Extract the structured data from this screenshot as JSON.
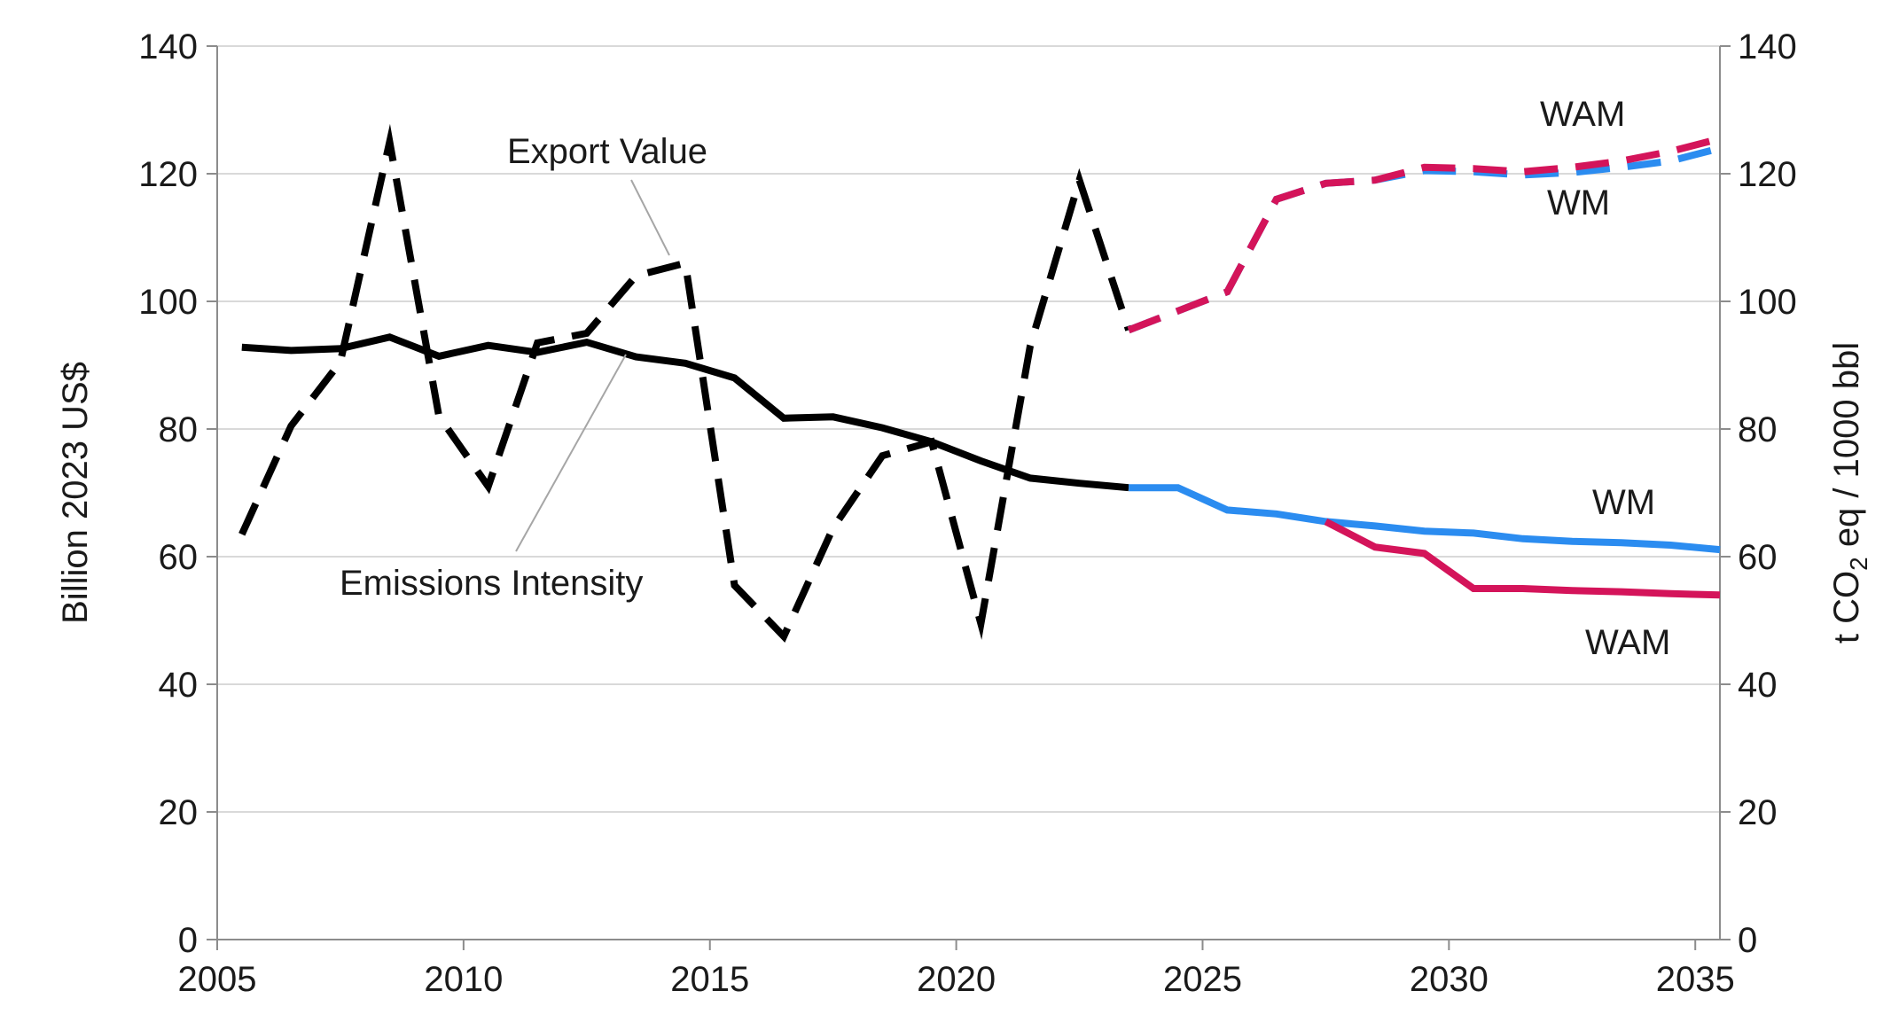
{
  "chart_data": {
    "type": "line",
    "title": "",
    "x_ticks": [
      "2005",
      "2010",
      "2015",
      "2020",
      "2025",
      "2030",
      "2035"
    ],
    "xlim": [
      2005,
      2035.5
    ],
    "left_axis": {
      "label": "Billion 2023 US$",
      "ylim": [
        0,
        140
      ],
      "ticks": [
        "0",
        "20",
        "40",
        "60",
        "80",
        "100",
        "120",
        "140"
      ]
    },
    "right_axis": {
      "label_prefix": "t CO",
      "label_sub": "2",
      "label_suffix": " eq / 1000 bbl",
      "ylim": [
        0,
        140
      ],
      "ticks": [
        "0",
        "20",
        "40",
        "60",
        "80",
        "100",
        "120",
        "140"
      ]
    },
    "grid": true,
    "series": [
      {
        "name": "Export Value (historical)",
        "axis": "left",
        "style": "dashed",
        "color": "#000000",
        "x": [
          2005.5,
          2006.5,
          2007.5,
          2008.5,
          2009.5,
          2010.5,
          2011.5,
          2012.5,
          2013.5,
          2014.5,
          2015.5,
          2016.5,
          2017.5,
          2018.5,
          2019.5,
          2020.5,
          2021.5,
          2022.5,
          2023.5
        ],
        "values": [
          63.5,
          80.5,
          90.5,
          125,
          82,
          71,
          93.5,
          95,
          104,
          106,
          55.5,
          47.5,
          64.5,
          75.8,
          78,
          49.5,
          93,
          119,
          95.5
        ]
      },
      {
        "name": "Export Value WM",
        "axis": "left",
        "style": "dashed",
        "color": "#2b8cf0",
        "x": [
          2023.5,
          2024.5,
          2025.5,
          2026.5,
          2027.5,
          2028.5,
          2029.5,
          2030.5,
          2031.5,
          2032.5,
          2033.5,
          2034.5,
          2035.5
        ],
        "values": [
          95.5,
          98.5,
          101.5,
          116,
          118.5,
          119,
          120.5,
          120.3,
          119.8,
          120.2,
          121,
          122,
          124
        ]
      },
      {
        "name": "Export Value WAM",
        "axis": "left",
        "style": "dashed",
        "color": "#d4145a",
        "x": [
          2023.5,
          2024.5,
          2025.5,
          2026.5,
          2027.5,
          2028.5,
          2029.5,
          2030.5,
          2031.5,
          2032.5,
          2033.5,
          2034.5,
          2035.5
        ],
        "values": [
          95.5,
          98.5,
          101.5,
          116,
          118.5,
          119,
          121,
          120.8,
          120.3,
          121,
          122,
          123.5,
          125.5
        ]
      },
      {
        "name": "Emissions Intensity (historical)",
        "axis": "right",
        "style": "solid",
        "color": "#000000",
        "x": [
          2005.5,
          2006.5,
          2007.5,
          2008.5,
          2009.5,
          2010.5,
          2011.5,
          2012.5,
          2013.5,
          2014.5,
          2015.5,
          2016.5,
          2017.5,
          2018.5,
          2019.5,
          2020.5,
          2021.5,
          2022.5,
          2023.5
        ],
        "values": [
          92.8,
          92.3,
          92.6,
          94.4,
          91.4,
          93.1,
          92,
          93.6,
          91.3,
          90.3,
          88,
          81.7,
          81.9,
          80.2,
          78,
          75,
          72.3,
          71.5,
          70.8
        ]
      },
      {
        "name": "Emissions Intensity WM",
        "axis": "right",
        "style": "solid",
        "color": "#2b8cf0",
        "x": [
          2023.5,
          2024.5,
          2025.5,
          2026.5,
          2027.5,
          2028.5,
          2029.5,
          2030.5,
          2031.5,
          2032.5,
          2033.5,
          2034.5,
          2035.5
        ],
        "values": [
          70.8,
          70.8,
          67.3,
          66.7,
          65.5,
          64.8,
          64,
          63.7,
          62.8,
          62.4,
          62.2,
          61.8,
          61.1
        ]
      },
      {
        "name": "Emissions Intensity WAM",
        "axis": "right",
        "style": "solid",
        "color": "#d4145a",
        "x": [
          2027.5,
          2028.5,
          2029.5,
          2030.5,
          2031.5,
          2032.5,
          2033.5,
          2034.5,
          2035.5
        ],
        "values": [
          65.5,
          61.5,
          60.5,
          55,
          55,
          54.7,
          54.5,
          54.2,
          54
        ]
      }
    ],
    "annotations": {
      "export_value": "Export Value",
      "emissions_intensity": "Emissions Intensity",
      "wam_top": "WAM",
      "wm_top": "WM",
      "wm_bottom": "WM",
      "wam_bottom": "WAM"
    }
  }
}
